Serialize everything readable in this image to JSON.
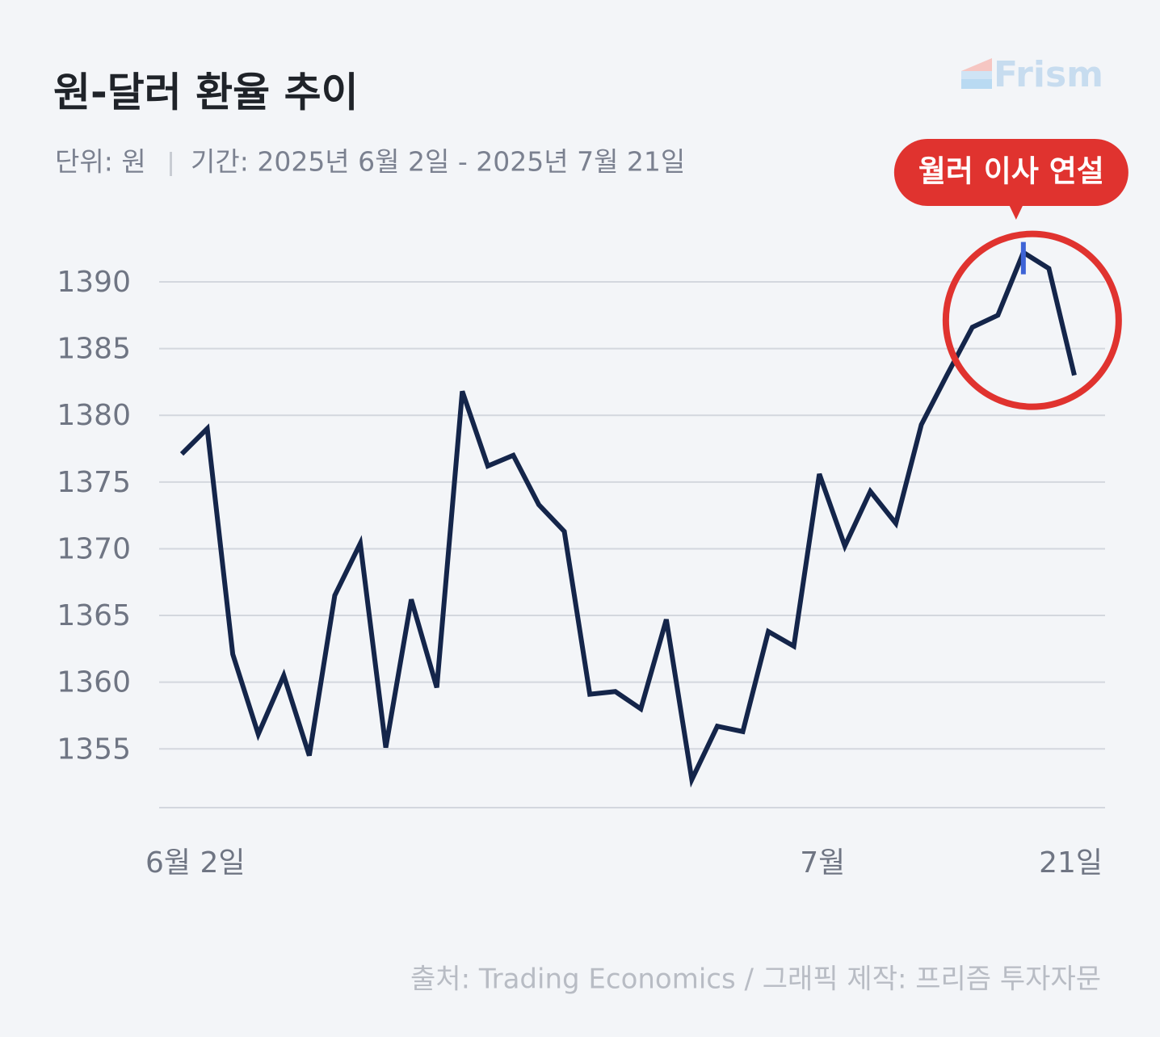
{
  "chart_data": {
    "type": "line",
    "title": "원-달러 환율 추이",
    "subtitle_unit": "단위: 원",
    "subtitle_period": "기간: 2025년 6월 2일 - 2025년 7월 21일",
    "source": "출처: Trading Economics / 그래픽 제작: 프리즘 투자자문",
    "logo": "Frism",
    "annotation": "월러 이사 연설",
    "categories": [
      "6월 2일",
      null,
      null,
      null,
      null,
      null,
      null,
      null,
      null,
      null,
      null,
      null,
      null,
      null,
      null,
      null,
      null,
      null,
      null,
      null,
      null,
      null,
      null,
      null,
      null,
      "7월",
      null,
      null,
      null,
      null,
      null,
      null,
      null,
      null,
      null,
      "21일"
    ],
    "series": [
      {
        "name": "원-달러 환율",
        "color": "#14254a",
        "values": [
          1377.1,
          1379.0,
          1362.1,
          1356.1,
          1360.5,
          1354.5,
          1366.5,
          1370.4,
          1355.1,
          1366.2,
          1359.6,
          1381.8,
          1376.2,
          1377.0,
          1373.3,
          1371.3,
          1359.1,
          1359.3,
          1358.0,
          1364.7,
          1352.7,
          1356.7,
          1356.3,
          1363.8,
          1362.7,
          1375.6,
          1370.2,
          1374.3,
          1371.9,
          1379.3,
          1383.0,
          1386.6,
          1387.5,
          1392.2,
          1391.0,
          1383.0
        ]
      }
    ],
    "annotation_index": 33,
    "ylim": [
      1350.6,
      1393
    ],
    "yticks": [
      1355,
      1360,
      1365,
      1370,
      1375,
      1380,
      1385,
      1390
    ],
    "grid": true
  }
}
